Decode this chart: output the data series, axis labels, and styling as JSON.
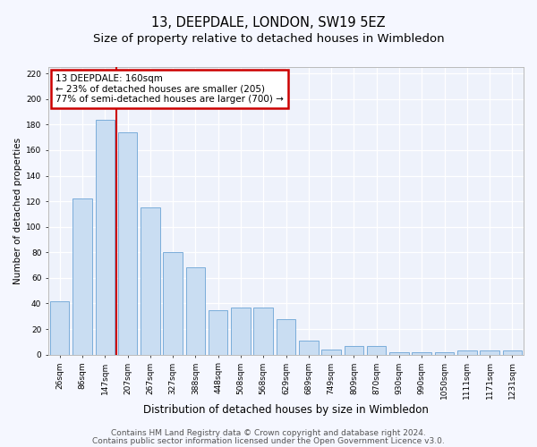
{
  "title1": "13, DEEPDALE, LONDON, SW19 5EZ",
  "title2": "Size of property relative to detached houses in Wimbledon",
  "xlabel": "Distribution of detached houses by size in Wimbledon",
  "ylabel": "Number of detached properties",
  "categories": [
    "26sqm",
    "86sqm",
    "147sqm",
    "207sqm",
    "267sqm",
    "327sqm",
    "388sqm",
    "448sqm",
    "508sqm",
    "568sqm",
    "629sqm",
    "689sqm",
    "749sqm",
    "809sqm",
    "870sqm",
    "930sqm",
    "990sqm",
    "1050sqm",
    "1111sqm",
    "1171sqm",
    "1231sqm"
  ],
  "values": [
    42,
    122,
    184,
    174,
    115,
    80,
    68,
    35,
    37,
    37,
    28,
    11,
    4,
    7,
    7,
    2,
    2,
    2,
    3,
    3,
    3
  ],
  "bar_color": "#c9ddf2",
  "bar_edge_color": "#7aadda",
  "vline_color": "#cc0000",
  "vline_x_index": 2,
  "annotation_line1": "13 DEEPDALE: 160sqm",
  "annotation_line2": "← 23% of detached houses are smaller (205)",
  "annotation_line3": "77% of semi-detached houses are larger (700) →",
  "annotation_box_color": "#cc0000",
  "ylim": [
    0,
    225
  ],
  "yticks": [
    0,
    20,
    40,
    60,
    80,
    100,
    120,
    140,
    160,
    180,
    200,
    220
  ],
  "footer1": "Contains HM Land Registry data © Crown copyright and database right 2024.",
  "footer2": "Contains public sector information licensed under the Open Government Licence v3.0.",
  "bg_color": "#eef2fb",
  "grid_color": "#ffffff",
  "fig_bg_color": "#f5f7ff",
  "title1_fontsize": 10.5,
  "title2_fontsize": 9.5,
  "xlabel_fontsize": 8.5,
  "ylabel_fontsize": 7.5,
  "tick_fontsize": 6.5,
  "footer_fontsize": 6.5,
  "annotation_fontsize": 7.5
}
